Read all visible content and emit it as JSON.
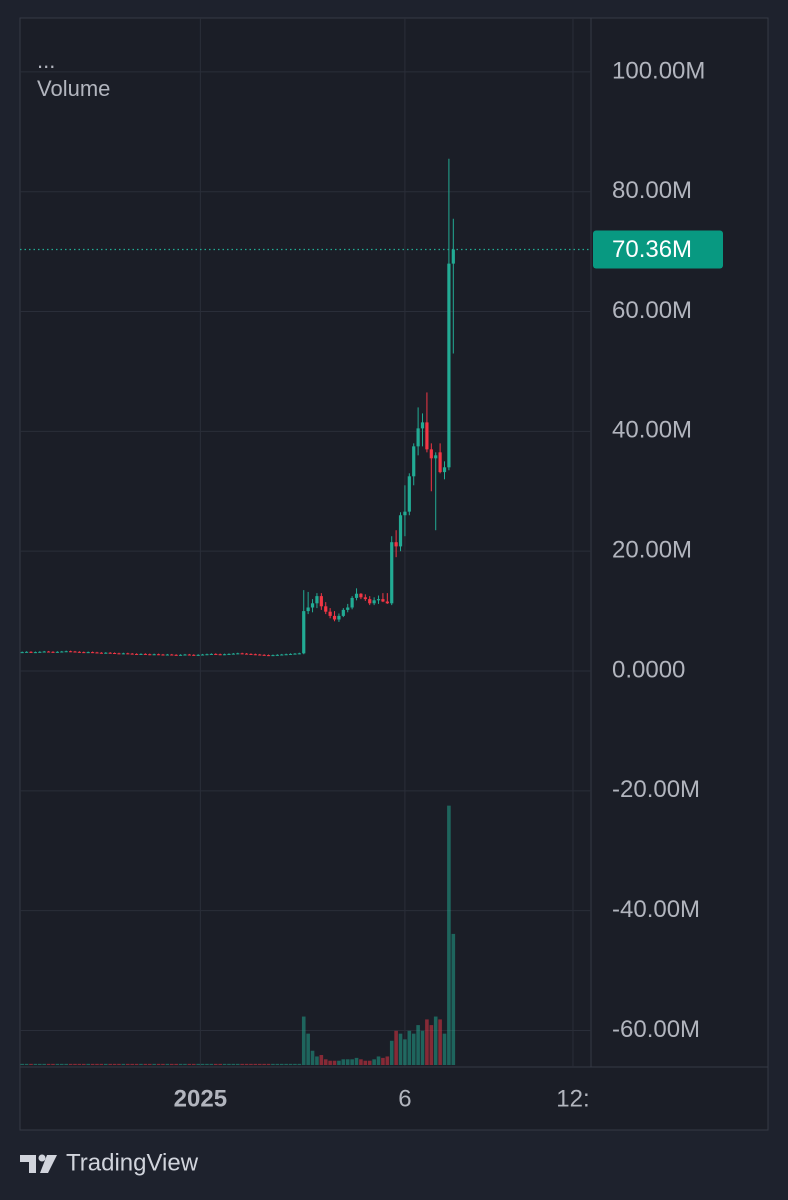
{
  "chart_data": {
    "type": "candlestick",
    "subtitle": "...",
    "title": "Volume",
    "up_color": "#22ab94",
    "down_color": "#f23645",
    "grid": true,
    "ylim": [
      -66.1,
      109
    ],
    "yticks": [
      {
        "value": 100,
        "label": "100.00M"
      },
      {
        "value": 80,
        "label": "80.00M"
      },
      {
        "value": 60,
        "label": "60.00M"
      },
      {
        "value": 40,
        "label": "40.00M"
      },
      {
        "value": 20,
        "label": "20.00M"
      },
      {
        "value": 0,
        "label": "0.0000"
      },
      {
        "value": -20,
        "label": "-20.00M"
      },
      {
        "value": -40,
        "label": "-40.00M"
      },
      {
        "value": -60,
        "label": "-60.00M"
      }
    ],
    "xlim": [
      -0.5,
      129.3
    ],
    "xticks": [
      {
        "value": 40.5,
        "label": "2025"
      },
      {
        "value": 87,
        "label": "6"
      },
      {
        "value": 125.2,
        "label": "12:"
      }
    ],
    "last_price": {
      "value": 70.36,
      "label": "70.36M"
    },
    "candles": [
      [
        3.1,
        3.25,
        3.0,
        3.15
      ],
      [
        3.15,
        3.3,
        3.05,
        3.2
      ],
      [
        3.2,
        3.3,
        3.0,
        3.1
      ],
      [
        3.1,
        3.25,
        3.0,
        3.15
      ],
      [
        3.15,
        3.3,
        3.05,
        3.2
      ],
      [
        3.2,
        3.35,
        3.1,
        3.25
      ],
      [
        3.25,
        3.35,
        3.1,
        3.2
      ],
      [
        3.2,
        3.3,
        3.05,
        3.15
      ],
      [
        3.15,
        3.3,
        3.05,
        3.2
      ],
      [
        3.2,
        3.35,
        3.1,
        3.25
      ],
      [
        3.25,
        3.4,
        3.15,
        3.3
      ],
      [
        3.3,
        3.4,
        3.15,
        3.25
      ],
      [
        3.25,
        3.35,
        3.1,
        3.2
      ],
      [
        3.2,
        3.3,
        3.05,
        3.15
      ],
      [
        3.15,
        3.25,
        3.0,
        3.1
      ],
      [
        3.1,
        3.25,
        3.0,
        3.15
      ],
      [
        3.15,
        3.25,
        3.0,
        3.1
      ],
      [
        3.1,
        3.2,
        2.95,
        3.05
      ],
      [
        3.05,
        3.15,
        2.9,
        3.0
      ],
      [
        3.0,
        3.15,
        2.9,
        3.05
      ],
      [
        3.05,
        3.15,
        2.9,
        3.0
      ],
      [
        3.0,
        3.1,
        2.85,
        2.95
      ],
      [
        2.95,
        3.05,
        2.8,
        2.9
      ],
      [
        2.9,
        3.05,
        2.8,
        2.95
      ],
      [
        2.95,
        3.05,
        2.8,
        2.9
      ],
      [
        2.9,
        3.0,
        2.75,
        2.85
      ],
      [
        2.85,
        2.95,
        2.7,
        2.8
      ],
      [
        2.8,
        2.95,
        2.7,
        2.85
      ],
      [
        2.85,
        2.95,
        2.7,
        2.8
      ],
      [
        2.8,
        2.9,
        2.65,
        2.75
      ],
      [
        2.75,
        2.9,
        2.65,
        2.8
      ],
      [
        2.8,
        2.9,
        2.65,
        2.75
      ],
      [
        2.75,
        2.85,
        2.6,
        2.7
      ],
      [
        2.7,
        2.85,
        2.6,
        2.75
      ],
      [
        2.75,
        2.85,
        2.6,
        2.7
      ],
      [
        2.7,
        2.8,
        2.55,
        2.65
      ],
      [
        2.65,
        2.8,
        2.55,
        2.7
      ],
      [
        2.7,
        2.85,
        2.6,
        2.75
      ],
      [
        2.75,
        2.85,
        2.6,
        2.7
      ],
      [
        2.7,
        2.8,
        2.55,
        2.65
      ],
      [
        2.65,
        2.8,
        2.55,
        2.7
      ],
      [
        2.7,
        2.85,
        2.6,
        2.75
      ],
      [
        2.75,
        2.9,
        2.65,
        2.8
      ],
      [
        2.8,
        2.95,
        2.7,
        2.85
      ],
      [
        2.85,
        2.95,
        2.7,
        2.8
      ],
      [
        2.8,
        2.9,
        2.65,
        2.75
      ],
      [
        2.75,
        2.9,
        2.65,
        2.8
      ],
      [
        2.8,
        2.95,
        2.7,
        2.85
      ],
      [
        2.85,
        3.0,
        2.75,
        2.9
      ],
      [
        2.9,
        3.05,
        2.8,
        2.95
      ],
      [
        2.95,
        3.05,
        2.8,
        2.9
      ],
      [
        2.9,
        3.0,
        2.75,
        2.85
      ],
      [
        2.85,
        2.95,
        2.7,
        2.8
      ],
      [
        2.8,
        2.9,
        2.65,
        2.75
      ],
      [
        2.75,
        2.85,
        2.6,
        2.7
      ],
      [
        2.7,
        2.8,
        2.55,
        2.65
      ],
      [
        2.65,
        2.75,
        2.5,
        2.6
      ],
      [
        2.6,
        2.75,
        2.5,
        2.65
      ],
      [
        2.65,
        2.8,
        2.55,
        2.7
      ],
      [
        2.7,
        2.85,
        2.6,
        2.75
      ],
      [
        2.75,
        2.9,
        2.65,
        2.8
      ],
      [
        2.8,
        2.95,
        2.7,
        2.85
      ],
      [
        2.85,
        3.0,
        2.75,
        2.9
      ],
      [
        2.9,
        3.05,
        2.8,
        2.95
      ],
      [
        2.95,
        13.5,
        2.8,
        10.0
      ],
      [
        10.0,
        13.2,
        9.5,
        10.6
      ],
      [
        10.6,
        12.0,
        9.8,
        11.3
      ],
      [
        11.3,
        13.0,
        10.5,
        12.5
      ],
      [
        12.5,
        13.0,
        10.2,
        10.8
      ],
      [
        10.8,
        11.5,
        9.5,
        9.9
      ],
      [
        9.9,
        10.5,
        8.8,
        9.2
      ],
      [
        9.2,
        10.0,
        8.3,
        8.6
      ],
      [
        8.6,
        9.6,
        8.2,
        9.2
      ],
      [
        9.2,
        10.5,
        9.0,
        10.2
      ],
      [
        10.2,
        11.2,
        9.8,
        10.6
      ],
      [
        10.6,
        12.5,
        10.3,
        12.2
      ],
      [
        12.2,
        13.8,
        11.8,
        12.9
      ],
      [
        12.9,
        13.0,
        12.0,
        12.3
      ],
      [
        12.3,
        12.8,
        11.7,
        12.0
      ],
      [
        12.0,
        12.5,
        11.0,
        11.3
      ],
      [
        11.3,
        12.3,
        11.0,
        11.8
      ],
      [
        11.8,
        12.6,
        11.2,
        12.0
      ],
      [
        12.0,
        13.0,
        11.5,
        11.6
      ],
      [
        11.6,
        13.0,
        11.2,
        11.3
      ],
      [
        11.3,
        22.5,
        11.0,
        21.5
      ],
      [
        21.5,
        23.5,
        19.0,
        20.8
      ],
      [
        20.8,
        26.5,
        20.0,
        26.0
      ],
      [
        26.0,
        31.0,
        22.5,
        26.6
      ],
      [
        26.6,
        33.0,
        26.0,
        32.5
      ],
      [
        32.5,
        38.0,
        31.0,
        37.5
      ],
      [
        37.5,
        44.0,
        36.0,
        40.5
      ],
      [
        40.5,
        43.0,
        37.5,
        41.5
      ],
      [
        41.5,
        46.5,
        36.5,
        37.0
      ],
      [
        37.0,
        38.0,
        30.0,
        35.5
      ],
      [
        35.5,
        36.5,
        23.5,
        36.0
      ],
      [
        36.5,
        38.0,
        33.0,
        33.2
      ],
      [
        33.2,
        35.0,
        32.0,
        34.0
      ],
      [
        34.0,
        85.5,
        33.5,
        68.0
      ],
      [
        68.0,
        75.5,
        53.0,
        70.36
      ]
    ],
    "volume_ylim": [
      0,
      100
    ],
    "volume": [
      0.4,
      0.4,
      0.4,
      0.4,
      0.4,
      0.4,
      0.4,
      0.4,
      0.4,
      0.4,
      0.4,
      0.4,
      0.4,
      0.4,
      0.4,
      0.4,
      0.4,
      0.4,
      0.4,
      0.4,
      0.4,
      0.4,
      0.4,
      0.4,
      0.4,
      0.4,
      0.4,
      0.4,
      0.4,
      0.4,
      0.4,
      0.4,
      0.4,
      0.4,
      0.4,
      0.4,
      0.4,
      0.4,
      0.4,
      0.4,
      0.4,
      0.4,
      0.4,
      0.4,
      0.4,
      0.4,
      0.4,
      0.4,
      0.4,
      0.4,
      0.4,
      0.4,
      0.4,
      0.4,
      0.4,
      0.4,
      0.4,
      0.4,
      0.4,
      0.4,
      0.4,
      0.4,
      0.4,
      0.4,
      17,
      11,
      5,
      3,
      3.5,
      2,
      1.5,
      1.5,
      1.5,
      2,
      2,
      2,
      2.5,
      2,
      1.5,
      1.5,
      2,
      3,
      2.5,
      3,
      8.5,
      12,
      11,
      9,
      12,
      11,
      14,
      12,
      16,
      14,
      17,
      16,
      11,
      91,
      46
    ]
  },
  "brand": "TradingView"
}
